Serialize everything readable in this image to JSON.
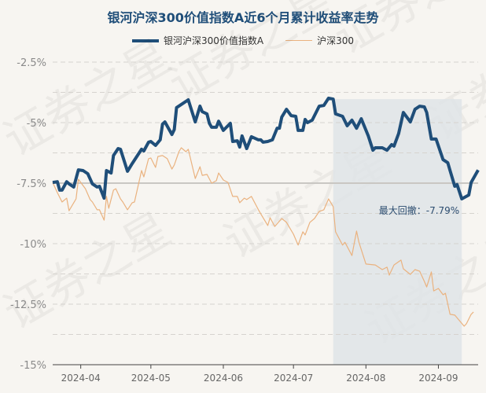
{
  "chart_data": {
    "type": "line",
    "title": "银河沪深300价值指数A近6个月累计收益率走势",
    "xlabel": "",
    "ylabel": "",
    "ylim": [
      -15,
      -2.5
    ],
    "xlim": [
      "2024-03-20",
      "2024-09-18"
    ],
    "yticks": [
      "-2.5%",
      "-5%",
      "-7.5%",
      "-10%",
      "-12.5%",
      "-15%"
    ],
    "ytick_values": [
      -2.5,
      -5,
      -7.5,
      -10,
      -12.5,
      -15
    ],
    "xticks": [
      "2024-04",
      "2024-05",
      "2024-06",
      "2024-07",
      "2024-08",
      "2024-09"
    ],
    "xtick_dates": [
      "2024-04-01",
      "2024-05-01",
      "2024-06-01",
      "2024-07-01",
      "2024-08-01",
      "2024-09-01"
    ],
    "grid": true,
    "legend_position": "top",
    "series": [
      {
        "name": "银河沪深300价值指数A",
        "color": "#1f4e79",
        "points": [
          [
            "2024-03-20",
            -7.47
          ],
          [
            "2024-03-22",
            -7.44
          ],
          [
            "2024-03-23",
            -7.79
          ],
          [
            "2024-03-24",
            -7.79
          ],
          [
            "2024-03-26",
            -7.44
          ],
          [
            "2024-03-27",
            -7.53
          ],
          [
            "2024-03-29",
            -7.66
          ],
          [
            "2024-03-31",
            -6.95
          ],
          [
            "2024-04-02",
            -6.98
          ],
          [
            "2024-04-04",
            -7.11
          ],
          [
            "2024-04-06",
            -7.53
          ],
          [
            "2024-04-08",
            -7.66
          ],
          [
            "2024-04-09",
            -7.63
          ],
          [
            "2024-04-11",
            -8.12
          ],
          [
            "2024-04-12",
            -6.98
          ],
          [
            "2024-04-14",
            -7.08
          ],
          [
            "2024-04-15",
            -6.36
          ],
          [
            "2024-04-17",
            -6.07
          ],
          [
            "2024-04-18",
            -6.1
          ],
          [
            "2024-04-21",
            -7.01
          ],
          [
            "2024-04-23",
            -6.69
          ],
          [
            "2024-04-27",
            -6.1
          ],
          [
            "2024-04-28",
            -6.17
          ],
          [
            "2024-04-30",
            -5.81
          ],
          [
            "2024-05-01",
            -5.78
          ],
          [
            "2024-05-03",
            -5.94
          ],
          [
            "2024-05-05",
            -5.71
          ],
          [
            "2024-05-06",
            -5.06
          ],
          [
            "2024-05-07",
            -4.97
          ],
          [
            "2024-05-10",
            -5.49
          ],
          [
            "2024-05-11",
            -5.29
          ],
          [
            "2024-05-12",
            -4.38
          ],
          [
            "2024-05-14",
            -4.25
          ],
          [
            "2024-05-17",
            -4.06
          ],
          [
            "2024-05-20",
            -4.97
          ],
          [
            "2024-05-22",
            -4.32
          ],
          [
            "2024-05-23",
            -4.55
          ],
          [
            "2024-05-25",
            -4.64
          ],
          [
            "2024-05-26",
            -5.03
          ],
          [
            "2024-05-27",
            -5.19
          ],
          [
            "2024-05-29",
            -5.19
          ],
          [
            "2024-05-30",
            -4.94
          ],
          [
            "2024-06-01",
            -5.32
          ],
          [
            "2024-06-04",
            -5.03
          ],
          [
            "2024-06-05",
            -5.78
          ],
          [
            "2024-06-07",
            -5.75
          ],
          [
            "2024-06-08",
            -6.01
          ],
          [
            "2024-06-09",
            -5.55
          ],
          [
            "2024-06-11",
            -6.07
          ],
          [
            "2024-06-13",
            -5.58
          ],
          [
            "2024-06-16",
            -5.71
          ],
          [
            "2024-06-17",
            -5.71
          ],
          [
            "2024-06-18",
            -5.81
          ],
          [
            "2024-06-20",
            -5.78
          ],
          [
            "2024-06-22",
            -5.71
          ],
          [
            "2024-06-24",
            -5.23
          ],
          [
            "2024-06-25",
            -5.23
          ],
          [
            "2024-06-26",
            -4.77
          ],
          [
            "2024-06-28",
            -4.45
          ],
          [
            "2024-06-30",
            -4.71
          ],
          [
            "2024-07-02",
            -4.74
          ],
          [
            "2024-07-03",
            -5.32
          ],
          [
            "2024-07-05",
            -5.32
          ],
          [
            "2024-07-06",
            -4.87
          ],
          [
            "2024-07-07",
            -5.0
          ],
          [
            "2024-07-09",
            -4.9
          ],
          [
            "2024-07-12",
            -4.32
          ],
          [
            "2024-07-14",
            -4.29
          ],
          [
            "2024-07-16",
            -3.99
          ],
          [
            "2024-07-18",
            -4.03
          ],
          [
            "2024-07-19",
            -4.64
          ],
          [
            "2024-07-22",
            -4.74
          ],
          [
            "2024-07-24",
            -5.13
          ],
          [
            "2024-07-26",
            -4.9
          ],
          [
            "2024-07-28",
            -5.23
          ],
          [
            "2024-07-30",
            -4.84
          ],
          [
            "2024-08-02",
            -5.55
          ],
          [
            "2024-08-04",
            -6.14
          ],
          [
            "2024-08-05",
            -6.04
          ],
          [
            "2024-08-08",
            -6.04
          ],
          [
            "2024-08-10",
            -6.14
          ],
          [
            "2024-08-12",
            -5.91
          ],
          [
            "2024-08-13",
            -5.97
          ],
          [
            "2024-08-15",
            -5.45
          ],
          [
            "2024-08-17",
            -4.58
          ],
          [
            "2024-08-20",
            -4.97
          ],
          [
            "2024-08-22",
            -4.45
          ],
          [
            "2024-08-24",
            -4.32
          ],
          [
            "2024-08-26",
            -4.35
          ],
          [
            "2024-08-27",
            -4.58
          ],
          [
            "2024-08-29",
            -5.68
          ],
          [
            "2024-08-31",
            -5.68
          ],
          [
            "2024-09-03",
            -6.53
          ],
          [
            "2024-09-05",
            -6.66
          ],
          [
            "2024-09-06",
            -6.98
          ],
          [
            "2024-09-08",
            -7.63
          ],
          [
            "2024-09-09",
            -7.56
          ],
          [
            "2024-09-11",
            -8.15
          ],
          [
            "2024-09-14",
            -7.99
          ],
          [
            "2024-09-15",
            -7.47
          ],
          [
            "2024-09-18",
            -6.96
          ]
        ]
      },
      {
        "name": "沪深300",
        "color": "#eab27f",
        "points": [
          [
            "2024-03-20",
            -7.47
          ],
          [
            "2024-03-22",
            -7.89
          ],
          [
            "2024-03-24",
            -8.28
          ],
          [
            "2024-03-26",
            -8.12
          ],
          [
            "2024-03-27",
            -8.64
          ],
          [
            "2024-03-30",
            -8.15
          ],
          [
            "2024-03-31",
            -7.34
          ],
          [
            "2024-04-03",
            -7.73
          ],
          [
            "2024-04-05",
            -8.18
          ],
          [
            "2024-04-06",
            -8.28
          ],
          [
            "2024-04-08",
            -8.6
          ],
          [
            "2024-04-09",
            -8.6
          ],
          [
            "2024-04-11",
            -9.03
          ],
          [
            "2024-04-12",
            -8.05
          ],
          [
            "2024-04-13",
            -8.54
          ],
          [
            "2024-04-15",
            -7.79
          ],
          [
            "2024-04-16",
            -7.73
          ],
          [
            "2024-04-18",
            -8.15
          ],
          [
            "2024-04-19",
            -8.28
          ],
          [
            "2024-04-21",
            -8.6
          ],
          [
            "2024-04-23",
            -8.31
          ],
          [
            "2024-04-24",
            -8.28
          ],
          [
            "2024-04-27",
            -6.98
          ],
          [
            "2024-04-28",
            -7.24
          ],
          [
            "2024-04-30",
            -6.49
          ],
          [
            "2024-05-01",
            -6.46
          ],
          [
            "2024-05-03",
            -6.85
          ],
          [
            "2024-05-04",
            -6.4
          ],
          [
            "2024-05-06",
            -6.36
          ],
          [
            "2024-05-08",
            -6.49
          ],
          [
            "2024-05-10",
            -6.92
          ],
          [
            "2024-05-11",
            -6.75
          ],
          [
            "2024-05-13",
            -6.2
          ],
          [
            "2024-05-14",
            -6.04
          ],
          [
            "2024-05-16",
            -6.2
          ],
          [
            "2024-05-17",
            -6.1
          ],
          [
            "2024-05-20",
            -7.31
          ],
          [
            "2024-05-22",
            -6.82
          ],
          [
            "2024-05-23",
            -7.18
          ],
          [
            "2024-05-25",
            -7.14
          ],
          [
            "2024-05-27",
            -7.5
          ],
          [
            "2024-05-29",
            -7.4
          ],
          [
            "2024-05-30",
            -7.08
          ],
          [
            "2024-06-01",
            -7.37
          ],
          [
            "2024-06-03",
            -7.47
          ],
          [
            "2024-06-05",
            -8.05
          ],
          [
            "2024-06-07",
            -8.05
          ],
          [
            "2024-06-08",
            -8.31
          ],
          [
            "2024-06-10",
            -8.12
          ],
          [
            "2024-06-11",
            -8.18
          ],
          [
            "2024-06-13",
            -8.05
          ],
          [
            "2024-06-16",
            -8.6
          ],
          [
            "2024-06-17",
            -8.77
          ],
          [
            "2024-06-20",
            -9.25
          ],
          [
            "2024-06-21",
            -8.93
          ],
          [
            "2024-06-23",
            -9.29
          ],
          [
            "2024-06-26",
            -8.96
          ],
          [
            "2024-06-28",
            -9.12
          ],
          [
            "2024-07-01",
            -9.61
          ],
          [
            "2024-07-03",
            -10.06
          ],
          [
            "2024-07-05",
            -9.51
          ],
          [
            "2024-07-06",
            -9.64
          ],
          [
            "2024-07-08",
            -9.12
          ],
          [
            "2024-07-10",
            -8.96
          ],
          [
            "2024-07-12",
            -8.67
          ],
          [
            "2024-07-14",
            -8.6
          ],
          [
            "2024-07-16",
            -8.15
          ],
          [
            "2024-07-18",
            -8.47
          ],
          [
            "2024-07-19",
            -9.51
          ],
          [
            "2024-07-22",
            -10.06
          ],
          [
            "2024-07-23",
            -9.94
          ],
          [
            "2024-07-26",
            -10.49
          ],
          [
            "2024-07-28",
            -9.48
          ],
          [
            "2024-07-29",
            -9.94
          ],
          [
            "2024-08-01",
            -10.84
          ],
          [
            "2024-08-05",
            -10.88
          ],
          [
            "2024-08-08",
            -11.07
          ],
          [
            "2024-08-10",
            -10.97
          ],
          [
            "2024-08-11",
            -11.3
          ],
          [
            "2024-08-13",
            -10.88
          ],
          [
            "2024-08-16",
            -10.68
          ],
          [
            "2024-08-17",
            -11.04
          ],
          [
            "2024-08-20",
            -11.27
          ],
          [
            "2024-08-22",
            -11.07
          ],
          [
            "2024-08-24",
            -11.14
          ],
          [
            "2024-08-26",
            -11.56
          ],
          [
            "2024-08-27",
            -11.79
          ],
          [
            "2024-08-29",
            -11.17
          ],
          [
            "2024-08-30",
            -11.95
          ],
          [
            "2024-09-01",
            -11.85
          ],
          [
            "2024-09-03",
            -12.11
          ],
          [
            "2024-09-04",
            -12.05
          ],
          [
            "2024-09-06",
            -12.92
          ],
          [
            "2024-09-08",
            -12.95
          ],
          [
            "2024-09-12",
            -13.41
          ],
          [
            "2024-09-13",
            -13.31
          ],
          [
            "2024-09-15",
            -12.92
          ],
          [
            "2024-09-16",
            -12.82
          ]
        ]
      }
    ],
    "drawdown": {
      "label": "最大回撤：-7.79%",
      "start": "2024-07-18",
      "end": "2024-09-11",
      "value": -7.79,
      "color": "#dfe4e8"
    },
    "baseline_value": -7.5
  },
  "watermark": "证券之星"
}
